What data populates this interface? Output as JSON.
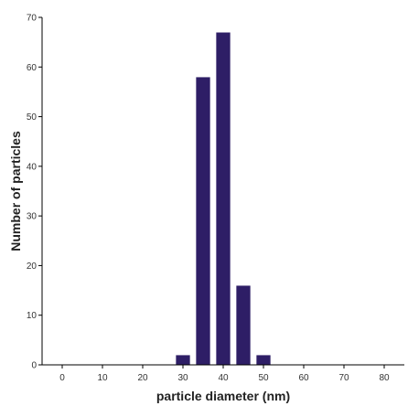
{
  "chart_data": {
    "type": "bar",
    "title": "",
    "xlabel": "particle diameter (nm)",
    "ylabel": "Number of particles",
    "xlim": [
      -5,
      85
    ],
    "ylim": [
      0,
      70
    ],
    "xticks": [
      0,
      10,
      20,
      30,
      40,
      50,
      60,
      70,
      80
    ],
    "yticks": [
      0,
      10,
      20,
      30,
      40,
      50,
      60,
      70
    ],
    "bar_width": 3.6,
    "x": [
      30,
      35,
      40,
      45,
      50
    ],
    "values": [
      2,
      58,
      67,
      16,
      2
    ],
    "grid": false,
    "legend": "none",
    "bar_color": "#2e1e66",
    "axis_color": "#000000"
  }
}
